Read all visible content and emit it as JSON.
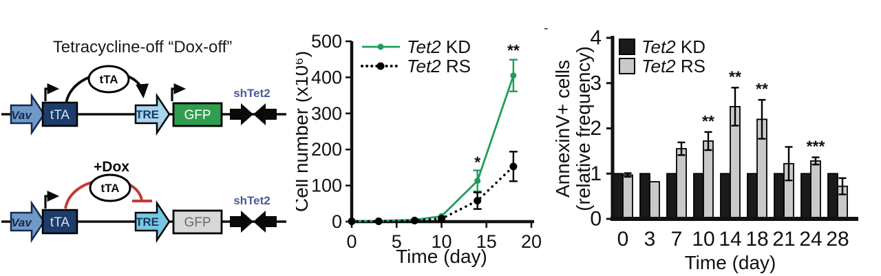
{
  "artifact_dash": "-",
  "colors": {
    "kd_green": "#1f9c5c",
    "rs_black": "#000000",
    "bar_black": "#1a1a1a",
    "bar_gray": "#c9c9c9",
    "construct_navy": "#1c3c69",
    "promoter_blue": "#7199c8",
    "tre_blue_top": "#a8d4ef",
    "tre_blue_bottom": "#7ac6e2",
    "gfp_green": "#2f9e4e",
    "gfp_gray_off": "#d8d8d8",
    "dox_red": "#c23b33",
    "shrna_label_blue": "#4a5a99"
  },
  "diagram": {
    "title": "Tetracycline-off “Dox-off”",
    "dox_off": {
      "promoter": "Vav",
      "gene": "tTA",
      "tf": "tTA",
      "response_element": "TRE",
      "reporter": "GFP",
      "hairpin": "shTet2"
    },
    "dox_on": {
      "promoter": "Vav",
      "gene": "tTA",
      "tf": "tTA",
      "dox": "+Dox",
      "response_element": "TRE",
      "reporter": "GFP",
      "hairpin": "shTet2"
    }
  },
  "chart_data": [
    {
      "id": "cell-growth",
      "type": "line",
      "title": "",
      "xlabel": "Time (day)",
      "ylabel": "Cell number (x10⁶)",
      "xlim": [
        0,
        20
      ],
      "ylim": [
        0,
        500
      ],
      "xticks": [
        0,
        5,
        10,
        15,
        20
      ],
      "yticks": [
        0,
        100,
        200,
        300,
        400,
        500
      ],
      "x": [
        0,
        3,
        7,
        10,
        14,
        18
      ],
      "series": [
        {
          "name": "Tet2 KD",
          "gene": "Tet2",
          "qualifier": "KD",
          "color": "#1f9c5c",
          "line_style": "solid",
          "values": [
            1,
            2,
            5,
            15,
            113,
            405
          ],
          "errors": [
            0,
            0,
            0,
            0,
            29,
            44
          ]
        },
        {
          "name": "Tet2 RS",
          "gene": "Tet2",
          "qualifier": "RS",
          "color": "#000000",
          "line_style": "dotted",
          "values": [
            1,
            1,
            3,
            8,
            58,
            153
          ],
          "errors": [
            0,
            0,
            0,
            0,
            23,
            41
          ]
        }
      ],
      "annotations": [
        {
          "text": "*",
          "x": 14,
          "y": 150
        },
        {
          "text": "**",
          "x": 18,
          "y": 460
        }
      ],
      "legend_position": "top-left",
      "grid": false
    },
    {
      "id": "annexin",
      "type": "bar",
      "title": "",
      "xlabel": "Time (day)",
      "ylabel_lines": [
        "AnnexinV+ cells",
        "(relative frequency)"
      ],
      "ylim": [
        0,
        4
      ],
      "yticks": [
        0,
        1,
        2,
        3,
        4
      ],
      "categories": [
        "0",
        "3",
        "7",
        "10",
        "14",
        "18",
        "21",
        "24",
        "28"
      ],
      "series": [
        {
          "name": "Tet2 KD",
          "gene": "Tet2",
          "qualifier": "KD",
          "color": "#1a1a1a",
          "values": [
            1,
            1,
            1,
            1,
            1,
            1,
            1,
            1,
            1
          ],
          "errors": [
            0,
            0,
            0,
            0,
            0,
            0,
            0,
            0,
            0
          ]
        },
        {
          "name": "Tet2 RS",
          "gene": "Tet2",
          "qualifier": "RS",
          "color": "#c9c9c9",
          "values": [
            0.97,
            0.82,
            1.55,
            1.72,
            2.48,
            2.2,
            1.22,
            1.28,
            0.72
          ],
          "errors": [
            0.04,
            0,
            0.14,
            0.2,
            0.42,
            0.43,
            0.37,
            0.08,
            0.18
          ]
        }
      ],
      "annotations": [
        {
          "text": "**",
          "category": "10"
        },
        {
          "text": "**",
          "category": "14"
        },
        {
          "text": "**",
          "category": "18"
        },
        {
          "text": "***",
          "category": "24"
        }
      ],
      "legend_position": "top-left",
      "grid": false
    }
  ]
}
